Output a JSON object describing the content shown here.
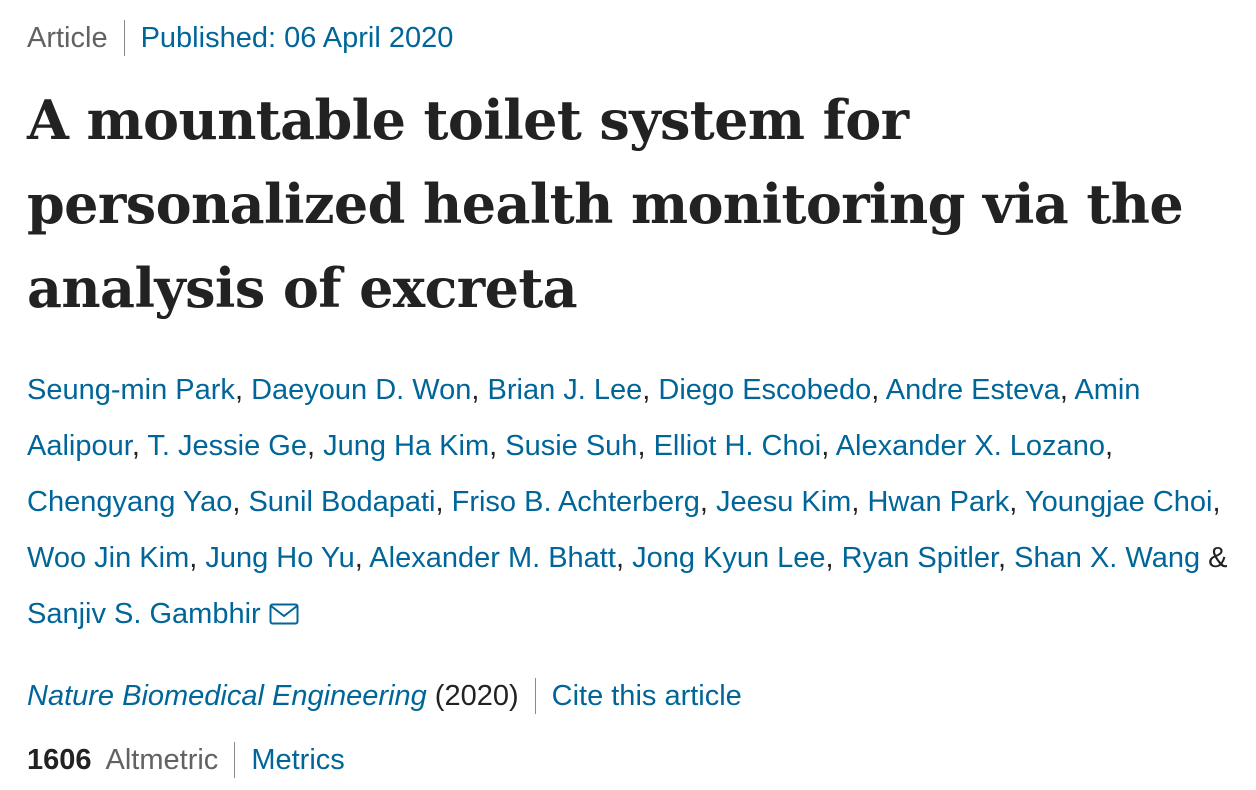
{
  "article": {
    "type": "Article",
    "published": "Published: 06 April 2020",
    "title": "A mountable toilet system for personalized health monitoring via the analysis of excreta",
    "authors": [
      "Seung-min Park",
      "Daeyoun D. Won",
      "Brian J. Lee",
      "Diego Escobedo",
      "Andre Esteva",
      "Amin Aalipour",
      "T. Jessie Ge",
      "Jung Ha Kim",
      "Susie Suh",
      "Elliot H. Choi",
      "Alexander X. Lozano",
      "Chengyang Yao",
      "Sunil Bodapati",
      "Friso B. Achterberg",
      "Jeesu Kim",
      "Hwan Park",
      "Youngjae Choi",
      "Woo Jin Kim",
      "Jung Ho Yu",
      "Alexander M. Bhatt",
      "Jong Kyun Lee",
      "Ryan Spitler",
      "Shan X. Wang",
      "Sanjiv S. Gambhir"
    ],
    "author_separator": ", ",
    "last_author_separator": " & ",
    "contact_icon": "mail-icon",
    "journal": "Nature Biomedical Engineering",
    "year": "(2020)",
    "cite_label": "Cite this article",
    "altmetric_count": "1606",
    "altmetric_label": "Altmetric",
    "metrics_label": "Metrics"
  },
  "colors": {
    "link": "#006699",
    "text": "#222222",
    "muted": "#626262"
  }
}
